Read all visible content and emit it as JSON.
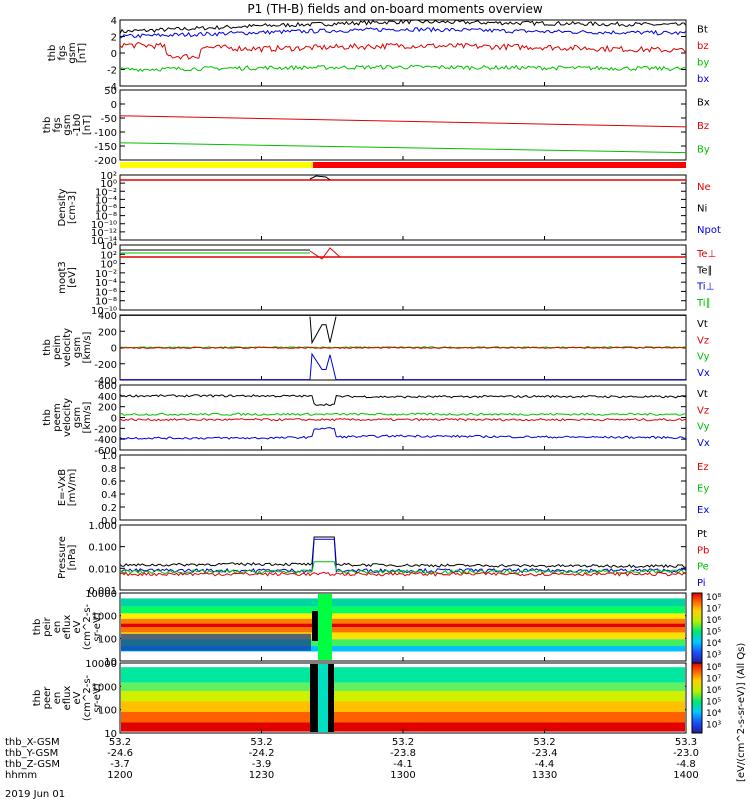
{
  "title": "P1 (TH-B) fields and on-board moments overview",
  "date_label": "2019 Jun 01",
  "x_axis": {
    "row_labels": [
      "thb_X-GSM",
      "thb_Y-GSM",
      "thb_Z-GSM",
      "hhmm"
    ],
    "columns": [
      {
        "x": "53.2",
        "y": "-24.6",
        "z": "-3.7",
        "hhmm": "1200"
      },
      {
        "x": "53.2",
        "y": "-24.2",
        "z": "-3.9",
        "hhmm": "1230"
      },
      {
        "x": "53.2",
        "y": "-23.8",
        "z": "-4.1",
        "hhmm": "1300"
      },
      {
        "x": "53.2",
        "y": "-23.4",
        "z": "-4.4",
        "hhmm": "1330"
      },
      {
        "x": "53.3",
        "y": "-23.0",
        "z": "-4.8",
        "hhmm": "1400"
      }
    ]
  },
  "colorbar": {
    "label": "[eV/(cm^2-s-sr-eV)] (All Qs)",
    "ticks_top": [
      "10⁸",
      "10⁷",
      "10⁶",
      "10⁵",
      "10⁴",
      "10³"
    ],
    "ticks_bottom": [
      "10⁸",
      "10⁷",
      "10⁶",
      "10⁵",
      "10⁴",
      "10³"
    ]
  },
  "panels": [
    {
      "id": "fgs",
      "ylabel": [
        "thb",
        "fgs",
        "gsm",
        "[nT]"
      ],
      "ticks": [
        "4",
        "2",
        "0",
        "-2",
        "-4"
      ],
      "ylim": [
        -4,
        4
      ],
      "legend": [
        {
          "t": "Bt",
          "c": "#000000"
        },
        {
          "t": "bz",
          "c": "#e00000"
        },
        {
          "t": "by",
          "c": "#00c000"
        },
        {
          "t": "bx",
          "c": "#0000e0"
        }
      ]
    },
    {
      "id": "fgs_bfield",
      "ylabel": [
        "thb",
        "fgs",
        "gsm",
        "-1b0",
        "[nT]"
      ],
      "ticks": [
        "50",
        "0",
        "-50",
        "-100",
        "-150",
        "-200"
      ],
      "ylim": [
        -230,
        55
      ],
      "legend": [
        {
          "t": "Bx",
          "c": "#000000"
        },
        {
          "t": "Bz",
          "c": "#e00000"
        },
        {
          "t": "By",
          "c": "#00c000"
        }
      ]
    },
    {
      "id": "density",
      "ylabel": [
        "Density",
        "[cm-3]"
      ],
      "ticks": [
        "10²",
        "10⁰",
        "10⁻²",
        "10⁻⁴",
        "10⁻⁶",
        "10⁻⁸",
        "10⁻¹⁰",
        "10⁻¹²",
        "10⁻¹⁴"
      ],
      "legend": [
        {
          "t": "Ne",
          "c": "#e00000"
        },
        {
          "t": "Ni",
          "c": "#000000"
        },
        {
          "t": "Npot",
          "c": "#0000e0"
        }
      ]
    },
    {
      "id": "temp",
      "ylabel": [
        "moqt3",
        "[eV]"
      ],
      "ticks": [
        "10⁴",
        "10²",
        "10⁰",
        "10⁻²",
        "10⁻⁴",
        "10⁻⁶",
        "10⁻⁸",
        "10⁻¹⁰"
      ],
      "legend": [
        {
          "t": "Te⊥",
          "c": "#e00000"
        },
        {
          "t": "Te∥",
          "c": "#000000"
        },
        {
          "t": "Ti⊥",
          "c": "#0000e0"
        },
        {
          "t": "Ti∥",
          "c": "#00c000"
        }
      ]
    },
    {
      "id": "peim",
      "ylabel": [
        "thb",
        "peim",
        "velocity",
        "gsm",
        "[km/s]"
      ],
      "ticks": [
        "400",
        "200",
        "0",
        "-200",
        "-400"
      ],
      "ylim": [
        -400,
        400
      ],
      "legend": [
        {
          "t": "Vt",
          "c": "#000000"
        },
        {
          "t": "Vz",
          "c": "#e00000"
        },
        {
          "t": "Vy",
          "c": "#00c000"
        },
        {
          "t": "Vx",
          "c": "#0000e0"
        }
      ]
    },
    {
      "id": "peem",
      "ylabel": [
        "thb",
        "peem",
        "velocity",
        "gsm",
        "[km/s]"
      ],
      "ticks": [
        "600",
        "400",
        "200",
        "0",
        "-200",
        "-400",
        "-600"
      ],
      "ylim": [
        -600,
        600
      ],
      "legend": [
        {
          "t": "Vt",
          "c": "#000000"
        },
        {
          "t": "Vz",
          "c": "#e00000"
        },
        {
          "t": "Vy",
          "c": "#00c000"
        },
        {
          "t": "Vx",
          "c": "#0000e0"
        }
      ]
    },
    {
      "id": "efield",
      "ylabel": [
        "E=-VxB",
        "[mV/m]"
      ],
      "ticks": [
        "1.0",
        "0.8",
        "0.6",
        "0.4",
        "0.2",
        "0.0"
      ],
      "ylim": [
        0,
        1
      ],
      "legend": [
        {
          "t": "Ez",
          "c": "#e00000"
        },
        {
          "t": "Ey",
          "c": "#00c000"
        },
        {
          "t": "Ex",
          "c": "#0000e0"
        }
      ]
    },
    {
      "id": "pressure",
      "ylabel": [
        "Pressure",
        "[nPa]"
      ],
      "ticks": [
        "1.000",
        "0.100",
        "0.010",
        "0.001"
      ],
      "legend": [
        {
          "t": "Pt",
          "c": "#000000"
        },
        {
          "t": "Pb",
          "c": "#e00000"
        },
        {
          "t": "Pe",
          "c": "#00c000"
        },
        {
          "t": "Pi",
          "c": "#0000e0"
        }
      ]
    },
    {
      "id": "peir",
      "ylabel": [
        "thb",
        "peir",
        "en",
        "eflux",
        "eV",
        "(cm^2-s-",
        "sr-eV)"
      ],
      "ticks": [
        "10000",
        "1000",
        "100",
        "10"
      ]
    },
    {
      "id": "peer",
      "ylabel": [
        "thb",
        "peer",
        "en",
        "eflux",
        "eV",
        "(cm^2-s-",
        "sr-eV)"
      ],
      "ticks": [
        "10000",
        "1000",
        "100",
        "10"
      ]
    }
  ],
  "chart_data": {
    "type": "line",
    "title": "P1 (TH-B) fields and on-board moments overview",
    "x_ticks": [
      "1200",
      "1230",
      "1300",
      "1330",
      "1400"
    ],
    "series": [
      {
        "name": "Bt",
        "panel": "fgs",
        "x": [
          "1200",
          "1230",
          "1300",
          "1330",
          "1400"
        ],
        "values": [
          2.6,
          3.3,
          3.8,
          3.6,
          3.4
        ]
      },
      {
        "name": "bz",
        "panel": "fgs",
        "x": [
          "1200",
          "1230",
          "1300",
          "1330",
          "1400"
        ],
        "values": [
          1.0,
          0.5,
          0.9,
          0.7,
          0.3
        ]
      },
      {
        "name": "by",
        "panel": "fgs",
        "x": [
          "1200",
          "1230",
          "1300",
          "1330",
          "1400"
        ],
        "values": [
          -2.0,
          -1.8,
          -1.7,
          -1.8,
          -1.9
        ]
      },
      {
        "name": "bx",
        "panel": "fgs",
        "x": [
          "1200",
          "1230",
          "1300",
          "1330",
          "1400"
        ],
        "values": [
          2.0,
          2.5,
          2.9,
          2.6,
          2.4
        ]
      },
      {
        "name": "Bz",
        "panel": "fgs_bfield",
        "x": [
          "1200",
          "1400"
        ],
        "values": [
          -50,
          -95
        ]
      },
      {
        "name": "By",
        "panel": "fgs_bfield",
        "x": [
          "1200",
          "1400"
        ],
        "values": [
          -160,
          -200
        ]
      },
      {
        "name": "Vt",
        "panel": "peem",
        "x": [
          "1200",
          "1230",
          "1300",
          "1330",
          "1400"
        ],
        "values": [
          400,
          400,
          380,
          390,
          380
        ]
      },
      {
        "name": "Vx",
        "panel": "peem",
        "x": [
          "1200",
          "1230",
          "1300",
          "1330",
          "1400"
        ],
        "values": [
          -380,
          -380,
          -340,
          -360,
          -370
        ]
      },
      {
        "name": "Pt",
        "panel": "pressure",
        "x": [
          "1200",
          "1230",
          "1300",
          "1330",
          "1400"
        ],
        "values": [
          0.014,
          0.016,
          0.014,
          0.013,
          0.013
        ]
      }
    ]
  }
}
